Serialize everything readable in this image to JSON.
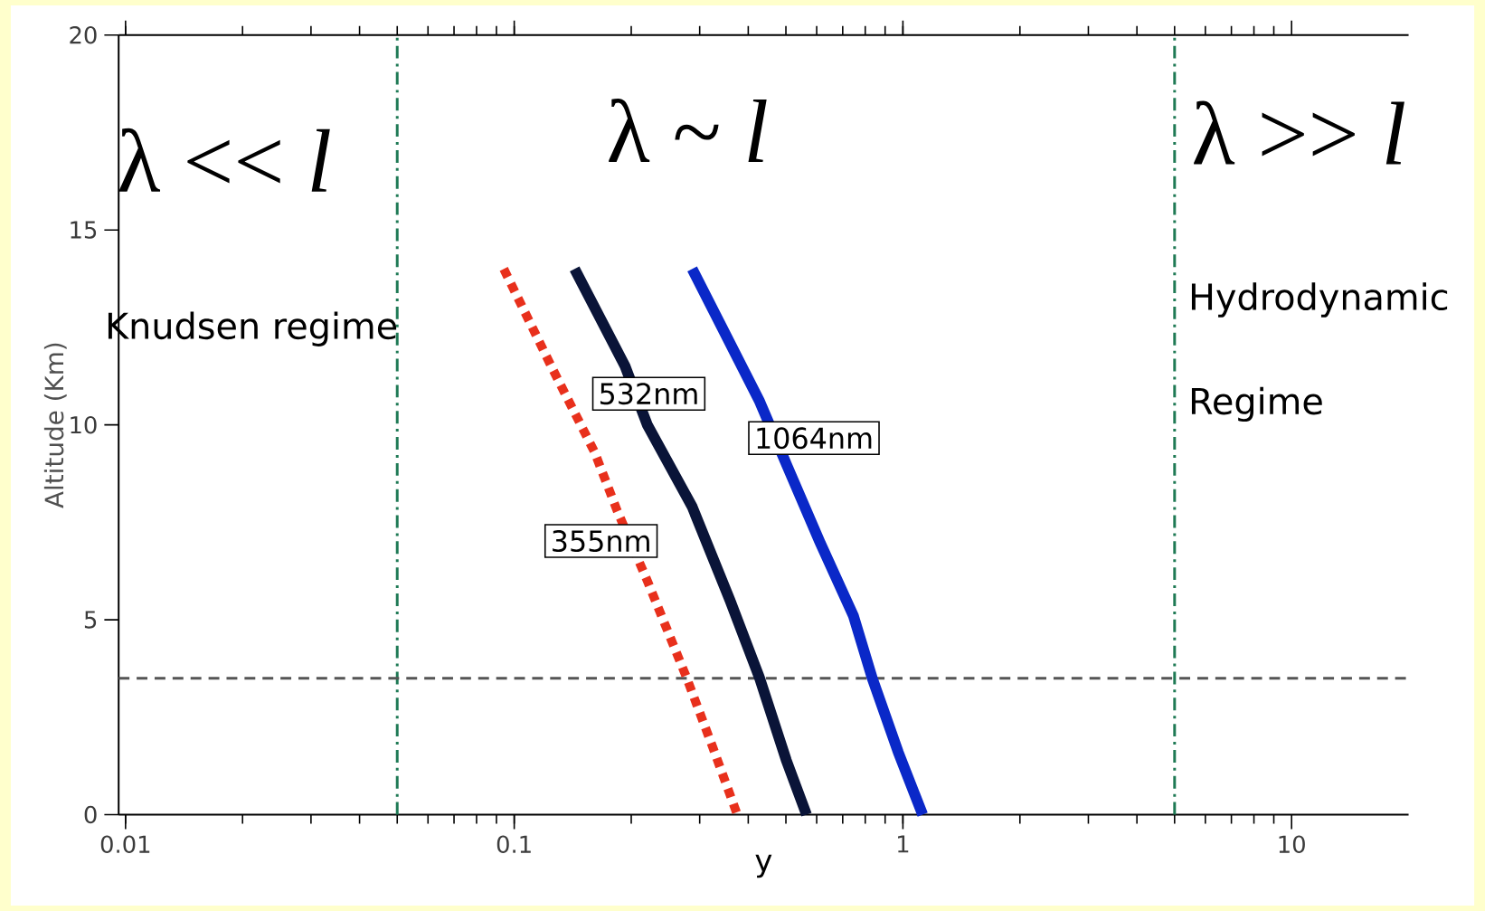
{
  "chart_data": {
    "type": "line",
    "xlabel": "y",
    "ylabel": "Altitude (Km)",
    "log": "x",
    "marker": "none",
    "xlim": [
      0.0096,
      20
    ],
    "ylim": [
      0,
      20
    ],
    "xticks": [
      0.01,
      0.1,
      1,
      10
    ],
    "yticks": [
      0,
      5,
      10,
      15,
      20
    ],
    "series": [
      {
        "name": "355nm",
        "color": "#e8301c",
        "line_style": "dotted",
        "x": [
          0.094,
          0.126,
          0.161,
          0.184,
          0.22,
          0.278,
          0.325,
          0.375
        ],
        "values": [
          14,
          11.4,
          9.3,
          7.8,
          6.0,
          3.5,
          1.7,
          0
        ]
      },
      {
        "name": "532nm",
        "color": "#0a1438",
        "line_style": "solid",
        "x": [
          0.143,
          0.193,
          0.22,
          0.287,
          0.359,
          0.428,
          0.501,
          0.565
        ],
        "values": [
          14,
          11.5,
          10.0,
          7.9,
          5.5,
          3.5,
          1.4,
          0
        ]
      },
      {
        "name": "1064nm",
        "color": "#0a28c8",
        "line_style": "solid",
        "x": [
          0.287,
          0.428,
          0.501,
          0.611,
          0.746,
          0.834,
          0.973,
          1.124
        ],
        "values": [
          14,
          10.6,
          9.0,
          7.0,
          5.1,
          3.5,
          1.6,
          0
        ]
      }
    ],
    "ref_lines": [
      {
        "axis": "x",
        "value": 0.05,
        "color": "#1f7a55",
        "line_style": "dashdot"
      },
      {
        "axis": "x",
        "value": 5,
        "color": "#1f7a55",
        "line_style": "dashdot"
      },
      {
        "axis": "y",
        "value": 3.5,
        "color": "#555555",
        "line_style": "dashed"
      }
    ],
    "annotations": [
      "λ << *l*",
      "λ ~ *l*",
      "λ >> *l*",
      "Knudsen regime",
      "Hydrodynamic Regime"
    ]
  }
}
